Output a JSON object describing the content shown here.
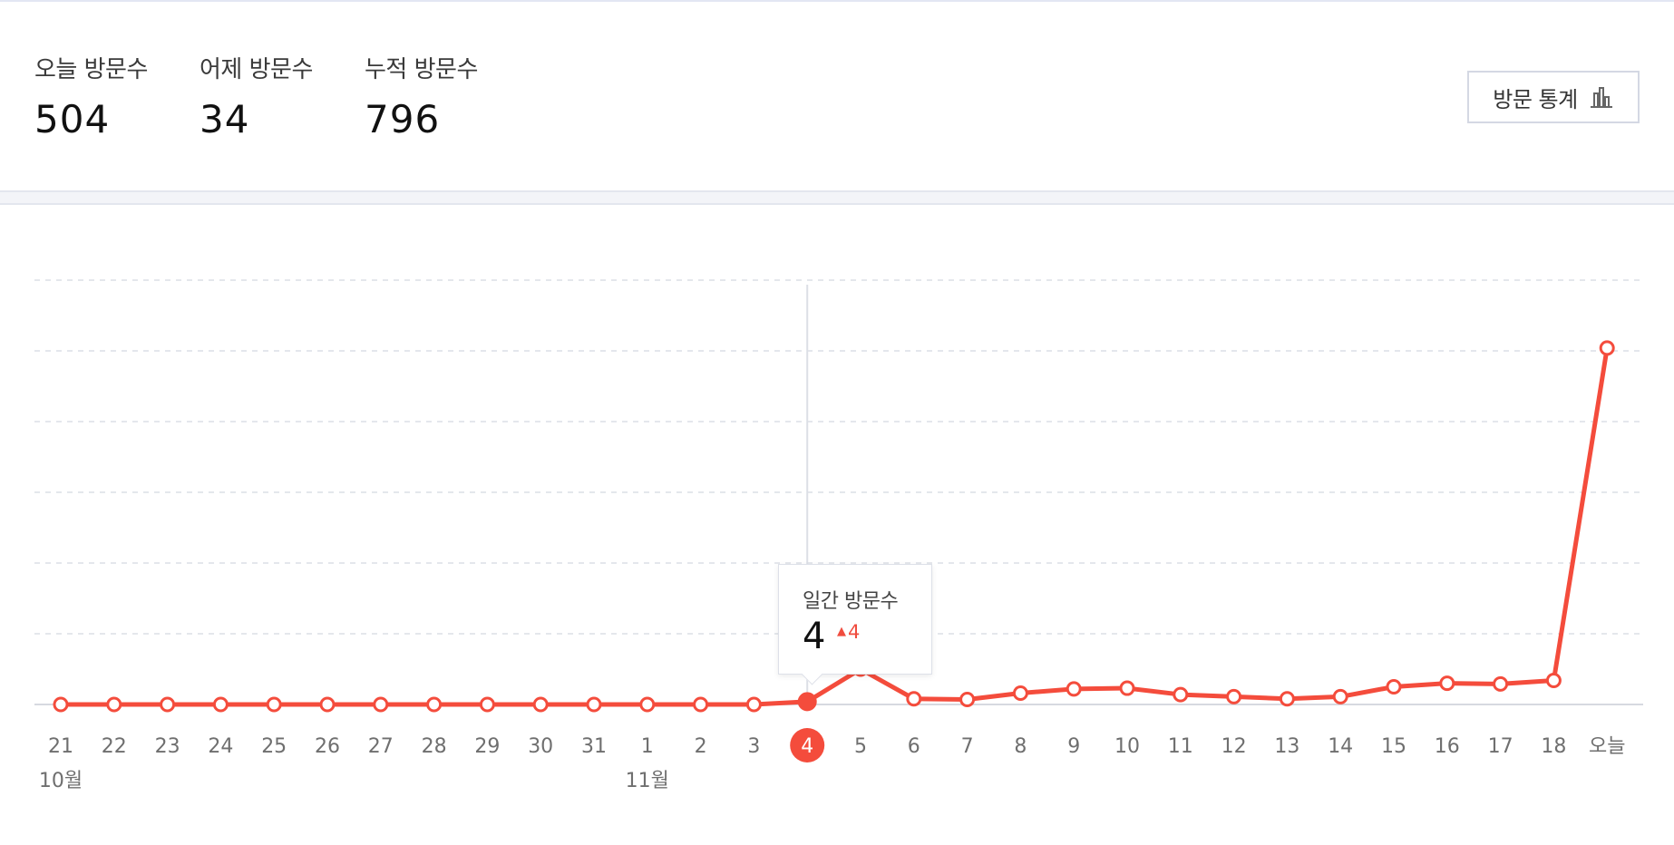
{
  "stats": [
    {
      "label": "오늘 방문수",
      "value": "504"
    },
    {
      "label": "어제 방문수",
      "value": "34"
    },
    {
      "label": "누적 방문수",
      "value": "796"
    }
  ],
  "stats_button": {
    "label": "방문 통계",
    "icon": "bar-chart-icon"
  },
  "colors": {
    "accent": "#f44c3c",
    "grid": "#dcdfe6",
    "axis_text": "#6f6f6f"
  },
  "tooltip": {
    "label": "일간 방문수",
    "value": "4",
    "delta": "4",
    "delta_icon": "triangle-up-icon"
  },
  "chart_data": {
    "type": "line",
    "x": [
      "21",
      "22",
      "23",
      "24",
      "25",
      "26",
      "27",
      "28",
      "29",
      "30",
      "31",
      "1",
      "2",
      "3",
      "4",
      "5",
      "6",
      "7",
      "8",
      "9",
      "10",
      "11",
      "12",
      "13",
      "14",
      "15",
      "16",
      "17",
      "18",
      "오늘"
    ],
    "month_labels": [
      {
        "label": "10월",
        "at": "21"
      },
      {
        "label": "11월",
        "at": "1"
      }
    ],
    "series": [
      {
        "values": [
          0,
          0,
          0,
          0,
          0,
          0,
          0,
          0,
          0,
          0,
          0,
          0,
          0,
          0,
          4,
          50,
          8,
          7,
          16,
          22,
          23,
          14,
          11,
          8,
          11,
          25,
          30,
          29,
          34,
          504
        ]
      }
    ],
    "ylim": [
      0,
      600
    ],
    "grid": true,
    "highlight": {
      "x": "4",
      "value": 4
    }
  }
}
